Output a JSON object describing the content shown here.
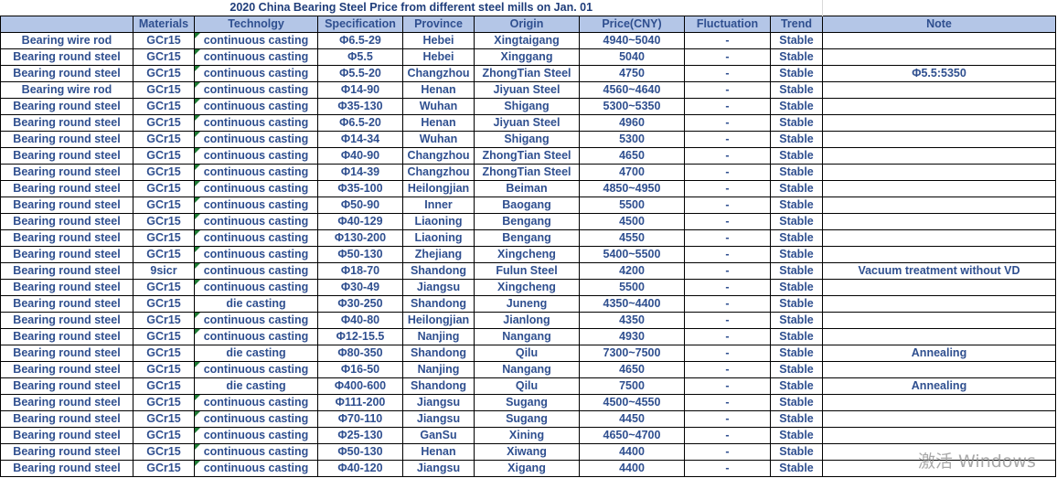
{
  "title": "2020 China Bearing Steel Price from different steel mills on Jan. 01",
  "headers": [
    "",
    "Materials",
    "Technolgy",
    "Specification",
    "Province",
    "Origin",
    "Price(CNY)",
    "Fluctuation",
    "Trend",
    "Note"
  ],
  "rows": [
    [
      "Bearing wire rod",
      "GCr15",
      "continuous casting",
      "Φ6.5-29",
      "Hebei",
      "Xingtaigang",
      "4940~5040",
      "-",
      "Stable",
      ""
    ],
    [
      "Bearing round steel",
      "GCr15",
      "continuous casting",
      "Φ5.5",
      "Hebei",
      "Xinggang",
      "5040",
      "-",
      "Stable",
      ""
    ],
    [
      "Bearing round steel",
      "GCr15",
      "continuous casting",
      "Φ5.5-20",
      "Changzhou",
      "ZhongTian Steel",
      "4750",
      "-",
      "Stable",
      "Φ5.5:5350"
    ],
    [
      "Bearing wire rod",
      "GCr15",
      "continuous casting",
      "Φ14-90",
      "Henan",
      "Jiyuan Steel",
      "4560~4640",
      "-",
      "Stable",
      ""
    ],
    [
      "Bearing round steel",
      "GCr15",
      "continuous casting",
      "Φ35-130",
      "Wuhan",
      "Shigang",
      "5300~5350",
      "-",
      "Stable",
      ""
    ],
    [
      "Bearing round steel",
      "GCr15",
      "continuous casting",
      "Φ6.5-20",
      "Henan",
      "Jiyuan Steel",
      "4960",
      "-",
      "Stable",
      ""
    ],
    [
      "Bearing round steel",
      "GCr15",
      "continuous casting",
      "Φ14-34",
      "Wuhan",
      "Shigang",
      "5300",
      "-",
      "Stable",
      ""
    ],
    [
      "Bearing round steel",
      "GCr15",
      "continuous casting",
      "Φ40-90",
      "Changzhou",
      "ZhongTian Steel",
      "4650",
      "-",
      "Stable",
      ""
    ],
    [
      "Bearing round steel",
      "GCr15",
      "continuous casting",
      "Φ14-39",
      "Changzhou",
      "ZhongTian Steel",
      "4700",
      "-",
      "Stable",
      ""
    ],
    [
      "Bearing round steel",
      "GCr15",
      "continuous casting",
      "Φ35-100",
      "Heilongjian",
      "Beiman",
      "4850~4950",
      "-",
      "Stable",
      ""
    ],
    [
      "Bearing round steel",
      "GCr15",
      "continuous casting",
      "Φ50-90",
      "Inner",
      "Baogang",
      "5500",
      "-",
      "Stable",
      ""
    ],
    [
      "Bearing round steel",
      "GCr15",
      "continuous casting",
      "Φ40-129",
      "Liaoning",
      "Bengang",
      "4500",
      "-",
      "Stable",
      ""
    ],
    [
      "Bearing round steel",
      "GCr15",
      "continuous casting",
      "Φ130-200",
      "Liaoning",
      "Bengang",
      "4550",
      "-",
      "Stable",
      ""
    ],
    [
      "Bearing round steel",
      "GCr15",
      "continuous casting",
      "Φ50-130",
      "Zhejiang",
      "Xingcheng",
      "5400~5500",
      "-",
      "Stable",
      ""
    ],
    [
      "Bearing round steel",
      "9sicr",
      "continuous casting",
      "Φ18-70",
      "Shandong",
      "Fulun Steel",
      "4200",
      "-",
      "Stable",
      "Vacuum treatment without VD"
    ],
    [
      "Bearing round steel",
      "GCr15",
      "continuous casting",
      "Φ30-49",
      "Jiangsu",
      "Xingcheng",
      "5500",
      "-",
      "Stable",
      ""
    ],
    [
      "Bearing round steel",
      "GCr15",
      "die casting",
      "Φ30-250",
      "Shandong",
      "Juneng",
      "4350~4400",
      "-",
      "Stable",
      ""
    ],
    [
      "Bearing round steel",
      "GCr15",
      "continuous casting",
      "Φ40-80",
      "Heilongjian",
      "Jianlong",
      "4350",
      "-",
      "Stable",
      ""
    ],
    [
      "Bearing round steel",
      "GCr15",
      "continuous casting",
      "Φ12-15.5",
      "Nanjing",
      "Nangang",
      "4930",
      "-",
      "Stable",
      ""
    ],
    [
      "Bearing round steel",
      "GCr15",
      "die casting",
      "Φ80-350",
      "Shandong",
      "Qilu",
      "7300~7500",
      "-",
      "Stable",
      "Annealing"
    ],
    [
      "Bearing round steel",
      "GCr15",
      "continuous casting",
      "Φ16-50",
      "Nanjing",
      "Nangang",
      "4650",
      "-",
      "Stable",
      ""
    ],
    [
      "Bearing round steel",
      "GCr15",
      "die casting",
      "Φ400-600",
      "Shandong",
      "Qilu",
      "7500",
      "-",
      "Stable",
      "Annealing"
    ],
    [
      "Bearing round steel",
      "GCr15",
      "continuous casting",
      "Φ111-200",
      "Jiangsu",
      "Sugang",
      "4500~4550",
      "-",
      "Stable",
      ""
    ],
    [
      "Bearing round steel",
      "GCr15",
      "continuous casting",
      "Φ70-110",
      "Jiangsu",
      "Sugang",
      "4450",
      "-",
      "Stable",
      ""
    ],
    [
      "Bearing round steel",
      "GCr15",
      "continuous casting",
      "Φ25-130",
      "GanSu",
      "Xining",
      "4650~4700",
      "-",
      "Stable",
      ""
    ],
    [
      "Bearing round steel",
      "GCr15",
      "continuous casting",
      "Φ50-130",
      "Henan",
      "Xiwang",
      "4400",
      "-",
      "Stable",
      ""
    ],
    [
      "Bearing round steel",
      "GCr15",
      "continuous casting",
      "Φ40-120",
      "Jiangsu",
      "Xigang",
      "4400",
      "-",
      "Stable",
      ""
    ]
  ],
  "watermark": "激活 Windows",
  "colors": {
    "text": "#2f4f8f",
    "header_bg": "#b4c6e7",
    "comment_marker": "#1e7b34"
  }
}
